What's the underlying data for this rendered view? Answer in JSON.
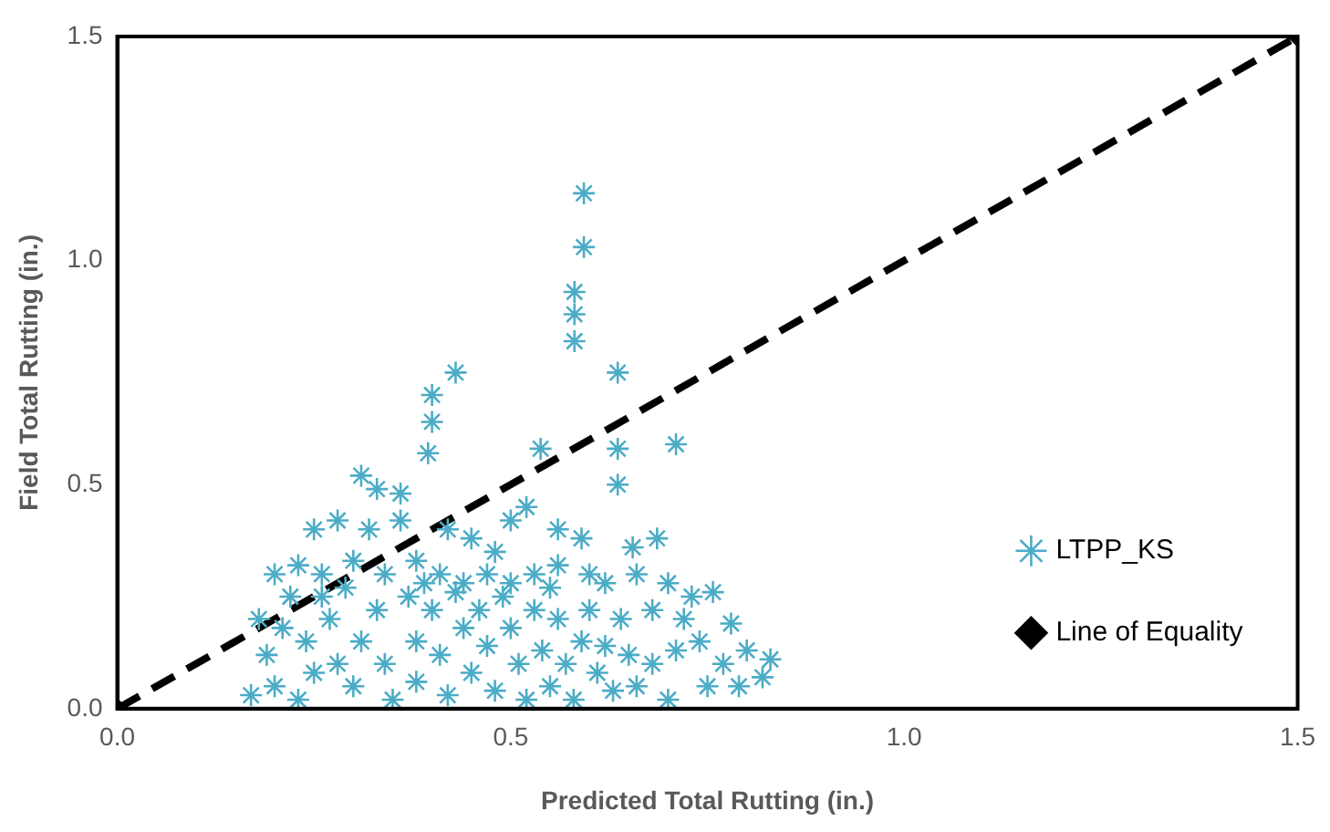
{
  "chart_data": {
    "type": "scatter",
    "xlabel": "Predicted Total Rutting (in.)",
    "ylabel": "Field Total Rutting (in.)",
    "xlim": [
      0,
      1.5
    ],
    "ylim": [
      0,
      1.5
    ],
    "xticks": [
      {
        "value": 0,
        "label": "0.0"
      },
      {
        "value": 0.5,
        "label": "0.5"
      },
      {
        "value": 1,
        "label": "1.0"
      },
      {
        "value": 1.5,
        "label": "1.5"
      }
    ],
    "yticks": [
      {
        "value": 0,
        "label": "0.0"
      },
      {
        "value": 0.5,
        "label": "0.5"
      },
      {
        "value": 1,
        "label": "1.0"
      },
      {
        "value": 1.5,
        "label": "1.5"
      }
    ],
    "grid": false,
    "legend": "bottom right",
    "series": [
      {
        "name": "LTPP_KS",
        "marker": "cross",
        "color": "#4bacc6",
        "x": [
          0.593,
          0.593,
          0.581,
          0.581,
          0.581,
          0.636,
          0.43,
          0.4,
          0.4,
          0.395,
          0.538,
          0.636,
          0.71,
          0.636,
          0.31,
          0.33,
          0.36,
          0.59,
          0.655,
          0.686,
          0.25,
          0.28,
          0.32,
          0.36,
          0.42,
          0.45,
          0.5,
          0.52,
          0.56,
          0.48,
          0.23,
          0.2,
          0.22,
          0.26,
          0.3,
          0.34,
          0.38,
          0.41,
          0.44,
          0.47,
          0.5,
          0.53,
          0.56,
          0.6,
          0.62,
          0.66,
          0.7,
          0.73,
          0.757,
          0.78,
          0.8,
          0.83,
          0.77,
          0.74,
          0.72,
          0.68,
          0.64,
          0.18,
          0.19,
          0.2,
          0.17,
          0.21,
          0.24,
          0.25,
          0.23,
          0.27,
          0.28,
          0.3,
          0.31,
          0.33,
          0.34,
          0.35,
          0.37,
          0.38,
          0.38,
          0.4,
          0.41,
          0.42,
          0.43,
          0.44,
          0.45,
          0.46,
          0.47,
          0.48,
          0.49,
          0.5,
          0.51,
          0.52,
          0.53,
          0.54,
          0.55,
          0.56,
          0.57,
          0.58,
          0.59,
          0.6,
          0.61,
          0.62,
          0.63,
          0.65,
          0.66,
          0.68,
          0.7,
          0.71,
          0.75,
          0.79,
          0.82,
          0.29,
          0.26,
          0.39,
          0.55
        ],
        "values": [
          1.15,
          1.03,
          0.93,
          0.88,
          0.82,
          0.75,
          0.75,
          0.7,
          0.64,
          0.57,
          0.58,
          0.58,
          0.59,
          0.5,
          0.52,
          0.49,
          0.48,
          0.38,
          0.36,
          0.38,
          0.4,
          0.42,
          0.4,
          0.42,
          0.4,
          0.38,
          0.42,
          0.45,
          0.4,
          0.35,
          0.32,
          0.3,
          0.25,
          0.3,
          0.33,
          0.3,
          0.33,
          0.3,
          0.28,
          0.3,
          0.28,
          0.3,
          0.32,
          0.3,
          0.28,
          0.3,
          0.28,
          0.25,
          0.26,
          0.19,
          0.13,
          0.11,
          0.1,
          0.15,
          0.2,
          0.22,
          0.2,
          0.2,
          0.12,
          0.05,
          0.03,
          0.18,
          0.15,
          0.08,
          0.02,
          0.2,
          0.1,
          0.05,
          0.15,
          0.22,
          0.1,
          0.02,
          0.25,
          0.15,
          0.06,
          0.22,
          0.12,
          0.03,
          0.26,
          0.18,
          0.08,
          0.22,
          0.14,
          0.04,
          0.25,
          0.18,
          0.1,
          0.02,
          0.22,
          0.13,
          0.05,
          0.2,
          0.1,
          0.02,
          0.15,
          0.22,
          0.08,
          0.14,
          0.04,
          0.12,
          0.05,
          0.1,
          0.02,
          0.13,
          0.05,
          0.05,
          0.07,
          0.27,
          0.25,
          0.28,
          0.27
        ]
      },
      {
        "name": "Line of Equality",
        "type": "line",
        "marker": "diamond",
        "line_style": "dashed",
        "color": "#000000",
        "x": [
          0,
          1.5
        ],
        "values": [
          0,
          1.5
        ]
      }
    ]
  }
}
